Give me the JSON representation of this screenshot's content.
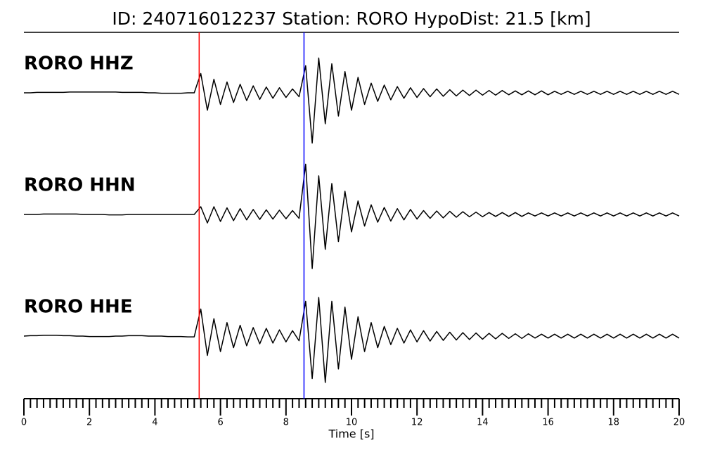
{
  "chart_data": {
    "type": "line",
    "title": "ID: 240716012237   Station: RORO   HypoDist:    21.5 [km]",
    "xlabel": "Time [s]",
    "xlim": [
      0,
      20
    ],
    "xticks": [
      0,
      2,
      4,
      6,
      8,
      10,
      12,
      14,
      16,
      18,
      20
    ],
    "xminorticks": [
      0.2,
      0.4,
      0.6,
      0.8,
      1,
      1.2,
      1.4,
      1.6,
      1.8,
      2.2,
      2.4,
      2.6,
      2.8,
      3,
      3.2,
      3.4,
      3.6,
      3.8,
      4.2,
      4.4,
      4.6,
      4.8,
      5,
      5.2,
      5.4,
      5.6,
      5.8,
      6.2,
      6.4,
      6.6,
      6.8,
      7,
      7.2,
      7.4,
      7.6,
      7.8,
      8.2,
      8.4,
      8.6,
      8.8,
      9,
      9.2,
      9.4,
      9.6,
      9.8,
      10.2,
      10.4,
      10.6,
      10.8,
      11,
      11.2,
      11.4,
      11.6,
      11.8,
      12.2,
      12.4,
      12.6,
      12.8,
      13,
      13.2,
      13.4,
      13.6,
      13.8,
      14.2,
      14.4,
      14.6,
      14.8,
      15,
      15.2,
      15.4,
      15.6,
      15.8,
      16.2,
      16.4,
      16.6,
      16.8,
      17,
      17.2,
      17.4,
      17.6,
      17.8,
      18.2,
      18.4,
      18.6,
      18.8,
      19,
      19.2,
      19.4,
      19.6,
      19.8
    ],
    "picks": [
      {
        "value": 5.35,
        "color": "#ff0000"
      },
      {
        "value": 8.55,
        "color": "#0000ff"
      }
    ],
    "label_color": "#4d9a0a",
    "x": [
      0,
      0.2,
      0.4,
      0.6,
      0.8,
      1,
      1.2,
      1.4,
      1.6,
      1.8,
      2,
      2.2,
      2.4,
      2.6,
      2.8,
      3,
      3.2,
      3.4,
      3.6,
      3.8,
      4,
      4.2,
      4.4,
      4.6,
      4.8,
      5,
      5.2,
      5.4,
      5.6,
      5.8,
      6,
      6.2,
      6.4,
      6.6,
      6.8,
      7,
      7.2,
      7.4,
      7.6,
      7.8,
      8,
      8.2,
      8.4,
      8.6,
      8.8,
      9,
      9.2,
      9.4,
      9.6,
      9.8,
      10,
      10.2,
      10.4,
      10.6,
      10.8,
      11,
      11.2,
      11.4,
      11.6,
      11.8,
      12,
      12.2,
      12.4,
      12.6,
      12.8,
      13,
      13.2,
      13.4,
      13.6,
      13.8,
      14,
      14.2,
      14.4,
      14.6,
      14.8,
      15,
      15.2,
      15.4,
      15.6,
      15.8,
      16,
      16.2,
      16.4,
      16.6,
      16.8,
      17,
      17.2,
      17.4,
      17.6,
      17.8,
      18,
      18.2,
      18.4,
      18.6,
      18.8,
      19,
      19.2,
      19.4,
      19.6,
      19.8,
      20
    ],
    "series": [
      {
        "name": "RORO HHZ",
        "color": "#000000",
        "values": [
          0,
          0,
          0.01,
          0.01,
          0.01,
          0.01,
          0.01,
          0.02,
          0.02,
          0.02,
          0.02,
          0.02,
          0.02,
          0.02,
          0.02,
          0.01,
          0.01,
          0.01,
          0.01,
          0,
          0,
          -0.01,
          -0.01,
          -0.01,
          -0.01,
          0,
          0,
          0.5,
          -0.45,
          0.35,
          -0.3,
          0.28,
          -0.25,
          0.22,
          -0.2,
          0.18,
          -0.17,
          0.15,
          -0.14,
          0.13,
          -0.12,
          0.1,
          -0.1,
          0.7,
          -1.3,
          0.9,
          -0.8,
          0.75,
          -0.6,
          0.55,
          -0.45,
          0.4,
          -0.3,
          0.25,
          -0.22,
          0.2,
          -0.18,
          0.16,
          -0.14,
          0.13,
          -0.12,
          0.11,
          -0.1,
          0.1,
          -0.09,
          0.08,
          -0.08,
          0.07,
          -0.07,
          0.07,
          -0.06,
          0.06,
          -0.06,
          0.06,
          -0.05,
          0.05,
          -0.05,
          0.05,
          -0.05,
          0.05,
          -0.05,
          0.04,
          -0.04,
          0.04,
          -0.04,
          0.04,
          -0.04,
          0.04,
          -0.04,
          0.04,
          -0.04,
          0.04,
          -0.04,
          0.04,
          -0.04,
          0.04,
          -0.04,
          0.04,
          -0.04,
          0.04,
          -0.04
        ]
      },
      {
        "name": "RORO HHN",
        "color": "#000000",
        "values": [
          0,
          0,
          0,
          0.01,
          0.01,
          0.01,
          0.01,
          0.01,
          0.01,
          0,
          0,
          0,
          0,
          -0.01,
          -0.01,
          -0.01,
          0,
          0,
          0,
          0,
          0,
          0,
          0,
          0,
          0,
          0,
          0,
          0.2,
          -0.22,
          0.2,
          -0.18,
          0.17,
          -0.16,
          0.15,
          -0.14,
          0.13,
          -0.13,
          0.12,
          -0.12,
          0.11,
          -0.11,
          0.1,
          -0.1,
          1.3,
          -1.4,
          1.0,
          -0.9,
          0.8,
          -0.7,
          0.6,
          -0.45,
          0.35,
          -0.3,
          0.25,
          -0.2,
          0.18,
          -0.17,
          0.15,
          -0.14,
          0.13,
          -0.12,
          0.1,
          -0.1,
          0.09,
          -0.09,
          0.08,
          -0.07,
          0.07,
          -0.06,
          0.06,
          -0.06,
          0.05,
          -0.05,
          0.05,
          -0.05,
          0.05,
          -0.05,
          0.04,
          -0.04,
          0.04,
          -0.04,
          0.04,
          -0.04,
          0.04,
          -0.04,
          0.04,
          -0.04,
          0.04,
          -0.04,
          0.04,
          -0.04,
          0.04,
          -0.04,
          0.04,
          -0.04,
          0.04,
          -0.04,
          0.04,
          -0.04,
          0.04,
          -0.04
        ]
      },
      {
        "name": "RORO HHE",
        "color": "#000000",
        "values": [
          0,
          0.01,
          0.01,
          0.02,
          0.02,
          0.02,
          0.01,
          0.01,
          0,
          0,
          -0.01,
          -0.01,
          -0.01,
          -0.01,
          0,
          0,
          0.01,
          0.01,
          0.01,
          0,
          0,
          0,
          -0.01,
          -0.01,
          -0.01,
          -0.02,
          -0.02,
          0.7,
          -0.5,
          0.45,
          -0.4,
          0.35,
          -0.3,
          0.28,
          -0.25,
          0.22,
          -0.2,
          0.2,
          -0.18,
          0.16,
          -0.15,
          0.14,
          -0.12,
          0.9,
          -1.1,
          1.0,
          -1.2,
          0.9,
          -0.85,
          0.75,
          -0.6,
          0.5,
          -0.4,
          0.35,
          -0.3,
          0.25,
          -0.22,
          0.2,
          -0.18,
          0.16,
          -0.15,
          0.14,
          -0.13,
          0.12,
          -0.11,
          0.1,
          -0.1,
          0.09,
          -0.09,
          0.08,
          -0.08,
          0.07,
          -0.07,
          0.07,
          -0.06,
          0.06,
          -0.06,
          0.06,
          -0.05,
          0.05,
          -0.05,
          0.05,
          -0.05,
          0.05,
          -0.05,
          0.05,
          -0.05,
          0.05,
          -0.05,
          0.05,
          -0.05,
          0.05,
          -0.05,
          0.05,
          -0.05,
          0.05,
          -0.05,
          0.05,
          -0.05,
          0.05,
          -0.05
        ]
      }
    ]
  }
}
